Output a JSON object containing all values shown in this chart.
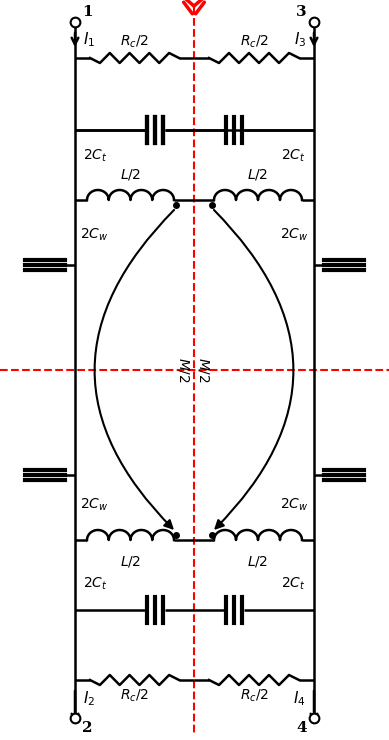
{
  "bg_color": "#ffffff",
  "line_color": "#000000",
  "red_color": "#ff0000",
  "fig_width": 3.89,
  "fig_height": 7.4,
  "dpi": 100
}
